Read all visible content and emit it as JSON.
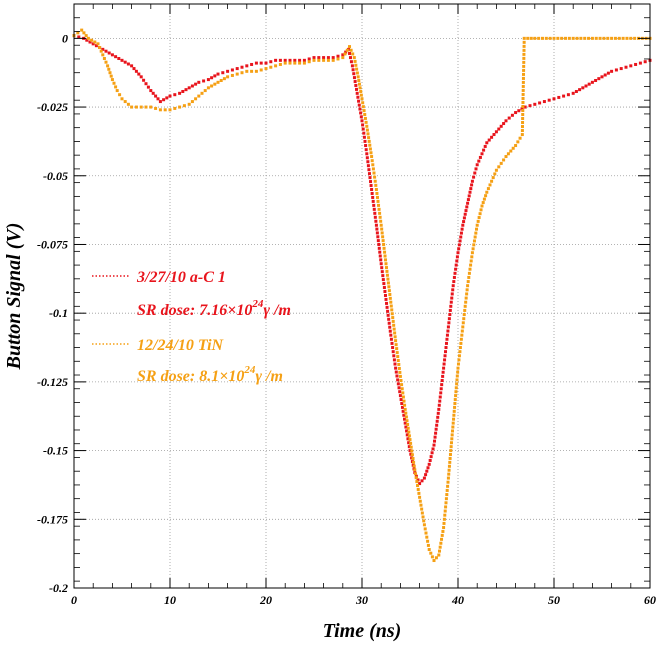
{
  "chart_data": {
    "type": "scatter",
    "xlabel": "Time (ns)",
    "ylabel": "Button Signal (V)",
    "xlim": [
      0,
      60
    ],
    "ylim": [
      -0.2,
      0.0125
    ],
    "x_ticks": [
      0,
      10,
      20,
      30,
      40,
      50,
      60
    ],
    "y_ticks": [
      0,
      -0.025,
      -0.05,
      -0.075,
      -0.1,
      -0.125,
      -0.15,
      -0.175,
      -0.2
    ],
    "x_tick_labels": [
      "0",
      "10",
      "20",
      "30",
      "40",
      "50",
      "60"
    ],
    "y_tick_labels": [
      "0",
      "-0.025",
      "-0.05",
      "-0.075",
      "-0.1",
      "-0.125",
      "-0.15",
      "-0.175",
      "-0.2"
    ],
    "grid": true,
    "legend_position": "left-middle",
    "series": [
      {
        "name": "3/27/10 a-C 1",
        "dose_label": "SR dose: 7.16×10",
        "dose_exponent": "24",
        "dose_unit": "γ /m",
        "color": "#e8141c",
        "points": [
          [
            0,
            0.001
          ],
          [
            1,
            0
          ],
          [
            2,
            -0.002
          ],
          [
            3,
            -0.004
          ],
          [
            4,
            -0.006
          ],
          [
            5,
            -0.008
          ],
          [
            6,
            -0.01
          ],
          [
            7,
            -0.014
          ],
          [
            8,
            -0.019
          ],
          [
            9,
            -0.023
          ],
          [
            10,
            -0.021
          ],
          [
            11,
            -0.02
          ],
          [
            12,
            -0.018
          ],
          [
            13,
            -0.016
          ],
          [
            14,
            -0.015
          ],
          [
            15,
            -0.013
          ],
          [
            16,
            -0.012
          ],
          [
            17,
            -0.011
          ],
          [
            18,
            -0.01
          ],
          [
            19,
            -0.009
          ],
          [
            20,
            -0.009
          ],
          [
            21,
            -0.008
          ],
          [
            22,
            -0.008
          ],
          [
            23,
            -0.008
          ],
          [
            24,
            -0.008
          ],
          [
            25,
            -0.007
          ],
          [
            26,
            -0.007
          ],
          [
            27,
            -0.007
          ],
          [
            28,
            -0.006
          ],
          [
            28.6,
            -0.004
          ],
          [
            29,
            -0.01
          ],
          [
            29.5,
            -0.02
          ],
          [
            30,
            -0.03
          ],
          [
            30.5,
            -0.042
          ],
          [
            31,
            -0.055
          ],
          [
            31.5,
            -0.068
          ],
          [
            32,
            -0.082
          ],
          [
            32.5,
            -0.095
          ],
          [
            33,
            -0.108
          ],
          [
            33.5,
            -0.12
          ],
          [
            34,
            -0.13
          ],
          [
            34.5,
            -0.14
          ],
          [
            35,
            -0.15
          ],
          [
            35.5,
            -0.158
          ],
          [
            36,
            -0.162
          ],
          [
            36.5,
            -0.16
          ],
          [
            37,
            -0.155
          ],
          [
            37.5,
            -0.148
          ],
          [
            38,
            -0.135
          ],
          [
            38.5,
            -0.12
          ],
          [
            39,
            -0.105
          ],
          [
            39.5,
            -0.09
          ],
          [
            40,
            -0.078
          ],
          [
            40.5,
            -0.068
          ],
          [
            41,
            -0.06
          ],
          [
            41.5,
            -0.052
          ],
          [
            42,
            -0.046
          ],
          [
            42.5,
            -0.042
          ],
          [
            43,
            -0.038
          ],
          [
            44,
            -0.034
          ],
          [
            45,
            -0.03
          ],
          [
            46,
            -0.027
          ],
          [
            47,
            -0.025
          ],
          [
            48,
            -0.024
          ],
          [
            49,
            -0.023
          ],
          [
            50,
            -0.022
          ],
          [
            51,
            -0.021
          ],
          [
            52,
            -0.02
          ],
          [
            53,
            -0.018
          ],
          [
            54,
            -0.016
          ],
          [
            55,
            -0.014
          ],
          [
            56,
            -0.012
          ],
          [
            57,
            -0.011
          ],
          [
            58,
            -0.01
          ],
          [
            59,
            -0.009
          ],
          [
            60,
            -0.008
          ]
        ]
      },
      {
        "name": "12/24/10 TiN",
        "dose_label": "SR dose: 8.1×10",
        "dose_exponent": "24",
        "dose_unit": "γ /m",
        "color": "#f5a014",
        "points": [
          [
            0,
            0.001
          ],
          [
            0.8,
            0.003
          ],
          [
            1.5,
            0
          ],
          [
            2.5,
            -0.002
          ],
          [
            3,
            -0.006
          ],
          [
            3.5,
            -0.01
          ],
          [
            4,
            -0.015
          ],
          [
            4.5,
            -0.019
          ],
          [
            5,
            -0.022
          ],
          [
            6,
            -0.025
          ],
          [
            7,
            -0.025
          ],
          [
            8,
            -0.025
          ],
          [
            9,
            -0.026
          ],
          [
            10,
            -0.026
          ],
          [
            11,
            -0.025
          ],
          [
            12,
            -0.024
          ],
          [
            13,
            -0.021
          ],
          [
            14,
            -0.018
          ],
          [
            15,
            -0.016
          ],
          [
            16,
            -0.014
          ],
          [
            17,
            -0.013
          ],
          [
            18,
            -0.012
          ],
          [
            19,
            -0.012
          ],
          [
            20,
            -0.011
          ],
          [
            21,
            -0.01
          ],
          [
            22,
            -0.009
          ],
          [
            23,
            -0.009
          ],
          [
            24,
            -0.009
          ],
          [
            25,
            -0.008
          ],
          [
            26,
            -0.008
          ],
          [
            27,
            -0.008
          ],
          [
            28,
            -0.007
          ],
          [
            28.7,
            -0.003
          ],
          [
            29.2,
            -0.007
          ],
          [
            29.6,
            -0.014
          ],
          [
            30,
            -0.022
          ],
          [
            30.5,
            -0.032
          ],
          [
            31,
            -0.043
          ],
          [
            31.5,
            -0.055
          ],
          [
            32,
            -0.068
          ],
          [
            32.5,
            -0.082
          ],
          [
            33,
            -0.096
          ],
          [
            33.5,
            -0.11
          ],
          [
            34,
            -0.123
          ],
          [
            34.5,
            -0.135
          ],
          [
            35,
            -0.146
          ],
          [
            35.5,
            -0.157
          ],
          [
            36,
            -0.167
          ],
          [
            36.5,
            -0.177
          ],
          [
            37,
            -0.186
          ],
          [
            37.5,
            -0.19
          ],
          [
            38,
            -0.188
          ],
          [
            38.5,
            -0.178
          ],
          [
            39,
            -0.16
          ],
          [
            39.5,
            -0.14
          ],
          [
            40,
            -0.12
          ],
          [
            40.5,
            -0.105
          ],
          [
            41,
            -0.09
          ],
          [
            41.5,
            -0.078
          ],
          [
            42,
            -0.068
          ],
          [
            42.5,
            -0.061
          ],
          [
            43,
            -0.056
          ],
          [
            43.5,
            -0.052
          ],
          [
            44,
            -0.048
          ],
          [
            45,
            -0.043
          ],
          [
            46,
            -0.039
          ],
          [
            46.7,
            -0.035
          ],
          [
            46.9,
            0
          ],
          [
            48,
            0
          ],
          [
            50,
            0
          ],
          [
            52,
            0
          ],
          [
            54,
            0
          ],
          [
            56,
            0
          ],
          [
            58,
            0
          ],
          [
            60,
            0
          ]
        ]
      }
    ]
  }
}
